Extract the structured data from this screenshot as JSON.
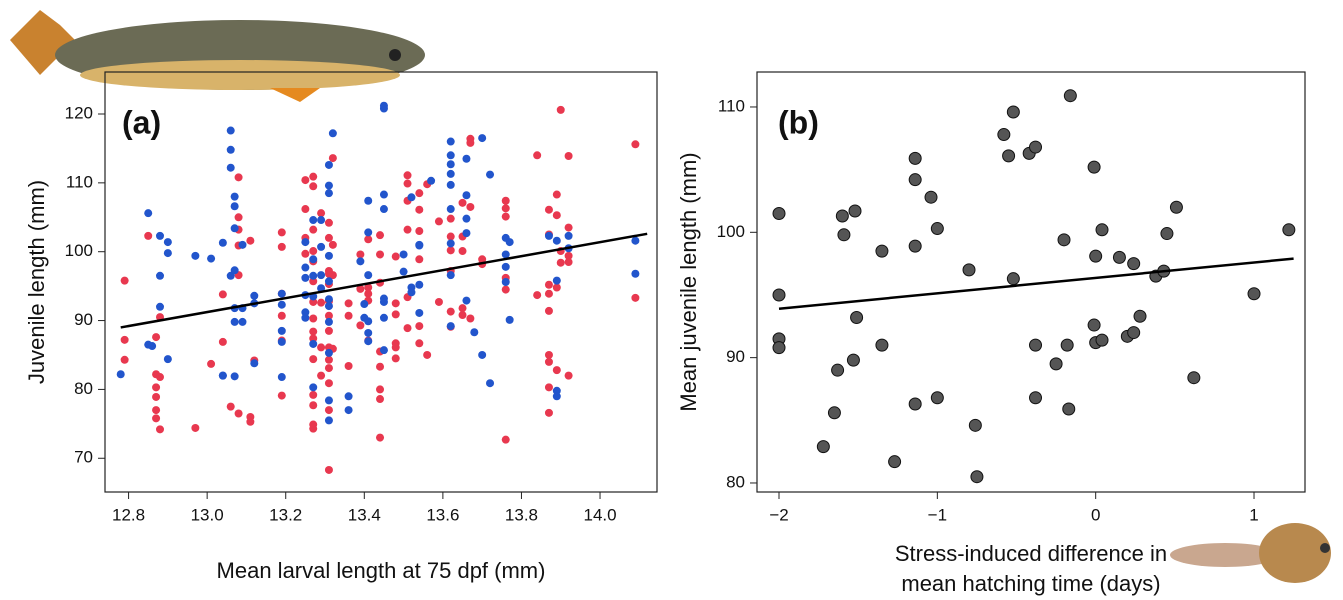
{
  "chart_data": [
    {
      "type": "scatter",
      "panel_label": "(a)",
      "xlabel": [
        "Mean larval length at 75 dpf (mm)"
      ],
      "ylabel": "Juvenile length (mm)",
      "xlim": [
        12.74,
        14.145
      ],
      "ylim": [
        65.1,
        126.1
      ],
      "xticks": [
        12.8,
        {
          "value": 13,
          "label": "13.0"
        },
        13.2,
        13.4,
        13.6,
        13.8,
        {
          "value": 14,
          "label": "14.0"
        }
      ],
      "yticks": [
        70,
        80,
        90,
        100,
        110,
        120
      ],
      "marker_size": 4,
      "series": [
        {
          "color": "#e8384f",
          "x": [
            12.79,
            12.79,
            12.79,
            12.85,
            12.87,
            12.87,
            12.87,
            12.87,
            12.87,
            12.87,
            12.88,
            12.88,
            12.88,
            12.97,
            13.01,
            13.04,
            13.04,
            13.06,
            13.08,
            13.08,
            13.08,
            13.08,
            13.08,
            13.08,
            13.11,
            13.11,
            13.11,
            13.12,
            13.19,
            13.19,
            13.19,
            13.19,
            13.19,
            13.19,
            13.25,
            13.25,
            13.25,
            13.25,
            13.27,
            13.27,
            13.27,
            13.27,
            13.27,
            13.27,
            13.27,
            13.27,
            13.27,
            13.27,
            13.27,
            13.27,
            13.27,
            13.27,
            13.27,
            13.29,
            13.29,
            13.29,
            13.29,
            13.31,
            13.31,
            13.31,
            13.31,
            13.31,
            13.31,
            13.31,
            13.31,
            13.31,
            13.31,
            13.31,
            13.31,
            13.31,
            13.31,
            13.32,
            13.32,
            13.32,
            13.32,
            13.36,
            13.36,
            13.36,
            13.39,
            13.39,
            13.39,
            13.41,
            13.41,
            13.41,
            13.41,
            13.41,
            13.44,
            13.44,
            13.44,
            13.44,
            13.44,
            13.44,
            13.44,
            13.44,
            13.48,
            13.48,
            13.48,
            13.48,
            13.48,
            13.48,
            13.51,
            13.51,
            13.51,
            13.51,
            13.51,
            13.51,
            13.54,
            13.54,
            13.54,
            13.54,
            13.54,
            13.54,
            13.56,
            13.56,
            13.59,
            13.59,
            13.62,
            13.62,
            13.62,
            13.62,
            13.62,
            13.62,
            13.65,
            13.65,
            13.65,
            13.65,
            13.65,
            13.67,
            13.67,
            13.67,
            13.67,
            13.7,
            13.7,
            13.76,
            13.76,
            13.76,
            13.76,
            13.76,
            13.76,
            13.84,
            13.84,
            13.87,
            13.87,
            13.87,
            13.87,
            13.87,
            13.87,
            13.87,
            13.87,
            13.87,
            13.89,
            13.89,
            13.89,
            13.89,
            13.9,
            13.9,
            13.9,
            13.92,
            13.92,
            13.92,
            13.92,
            13.92,
            14.09,
            14.09
          ],
          "values": [
            95.8,
            87.2,
            84.3,
            102.3,
            87.6,
            82.2,
            80.3,
            78.9,
            77,
            75.8,
            90.5,
            81.8,
            74.2,
            74.4,
            83.7,
            93.8,
            86.9,
            77.5,
            110.8,
            105,
            103.2,
            100.9,
            96.6,
            76.5,
            101.6,
            76,
            75.3,
            84.2,
            102.8,
            100.7,
            93.9,
            90.7,
            87.1,
            79.1,
            110.4,
            106.2,
            102,
            99.7,
            110.9,
            109.5,
            103.2,
            100.1,
            98.6,
            95.7,
            92.7,
            90.3,
            88.4,
            87.4,
            84.4,
            79.2,
            77.7,
            74.9,
            74.3,
            105.6,
            92.6,
            86.1,
            82,
            104.2,
            102,
            97.2,
            96.8,
            95.3,
            92.8,
            90.7,
            88.5,
            86.1,
            84.3,
            83.1,
            80.9,
            77,
            68.3,
            113.6,
            101,
            96.6,
            85.9,
            92.5,
            90.7,
            83.4,
            99.6,
            94.6,
            89.3,
            101.8,
            94.8,
            93.9,
            92.9,
            87.1,
            102.4,
            99.6,
            95.5,
            85.5,
            83.3,
            80,
            78.6,
            73,
            99.3,
            92.5,
            90.9,
            86.7,
            86.1,
            84.5,
            111.1,
            109.9,
            107.4,
            103.2,
            93.4,
            88.9,
            108.5,
            106.1,
            103,
            98.9,
            89.2,
            86.7,
            109.8,
            85,
            104.4,
            92.7,
            104.8,
            102.2,
            100.2,
            97.2,
            91.3,
            89.1,
            107.1,
            102.2,
            100.1,
            91.8,
            90.8,
            116.4,
            115.8,
            106.5,
            90.3,
            98.9,
            98.2,
            107.4,
            106.3,
            105.1,
            96.2,
            94.5,
            72.7,
            114,
            93.7,
            106.1,
            102.5,
            95.2,
            93.9,
            91.4,
            85,
            84,
            80.3,
            76.6,
            108.3,
            105.3,
            94.8,
            82.8,
            120.6,
            100.1,
            98.4,
            113.9,
            103.5,
            99.4,
            98.5,
            82,
            115.6,
            93.3
          ]
        },
        {
          "color": "#2255cc",
          "x": [
            12.78,
            12.85,
            12.85,
            12.86,
            12.88,
            12.88,
            12.88,
            12.9,
            12.9,
            12.9,
            12.97,
            13.01,
            13.04,
            13.04,
            13.04,
            13.06,
            13.06,
            13.06,
            13.06,
            13.07,
            13.07,
            13.07,
            13.07,
            13.07,
            13.07,
            13.07,
            13.09,
            13.09,
            13.09,
            13.12,
            13.12,
            13.12,
            13.19,
            13.19,
            13.19,
            13.19,
            13.19,
            13.25,
            13.25,
            13.25,
            13.25,
            13.25,
            13.25,
            13.27,
            13.27,
            13.27,
            13.27,
            13.27,
            13.27,
            13.29,
            13.29,
            13.29,
            13.29,
            13.31,
            13.31,
            13.31,
            13.31,
            13.31,
            13.31,
            13.31,
            13.31,
            13.31,
            13.31,
            13.31,
            13.32,
            13.36,
            13.36,
            13.39,
            13.4,
            13.4,
            13.41,
            13.41,
            13.41,
            13.41,
            13.41,
            13.41,
            13.45,
            13.45,
            13.45,
            13.45,
            13.45,
            13.45,
            13.45,
            13.45,
            13.5,
            13.5,
            13.52,
            13.52,
            13.52,
            13.54,
            13.54,
            13.54,
            13.54,
            13.57,
            13.62,
            13.62,
            13.62,
            13.62,
            13.62,
            13.62,
            13.62,
            13.62,
            13.62,
            13.66,
            13.66,
            13.66,
            13.66,
            13.66,
            13.68,
            13.7,
            13.7,
            13.72,
            13.72,
            13.76,
            13.76,
            13.76,
            13.76,
            13.77,
            13.77,
            13.87,
            13.89,
            13.89,
            13.89,
            13.89,
            13.92,
            13.92,
            14.09,
            14.09
          ],
          "values": [
            82.2,
            105.6,
            86.5,
            86.3,
            102.3,
            96.5,
            92,
            101.4,
            99.8,
            84.4,
            99.4,
            99,
            101.3,
            82,
            82,
            117.6,
            114.8,
            112.2,
            96.5,
            108,
            106.6,
            103.4,
            97.3,
            91.8,
            89.8,
            81.9,
            101,
            91.8,
            89.8,
            93.6,
            92.5,
            83.8,
            93.9,
            92.3,
            88.5,
            86.9,
            81.8,
            101.4,
            97.7,
            96.2,
            93.7,
            91.2,
            90.4,
            104.6,
            98.9,
            96.5,
            93.5,
            86.6,
            80.3,
            104.6,
            100.7,
            96.6,
            94.7,
            112.6,
            109.6,
            108.5,
            99.4,
            95.7,
            93.1,
            92.1,
            89.8,
            85.3,
            78.4,
            75.5,
            117.2,
            79,
            77,
            98.6,
            92.4,
            90.4,
            107.4,
            102.8,
            96.6,
            89.9,
            88.2,
            87,
            121.2,
            120.8,
            108.3,
            106.2,
            93.2,
            92.7,
            90.4,
            85.7,
            99.6,
            97.1,
            107.9,
            94.8,
            94.1,
            101,
            100.9,
            95.2,
            91.1,
            110.3,
            116,
            114,
            112.7,
            111.3,
            109.7,
            106.2,
            101.2,
            96.6,
            89.2,
            113.5,
            108.2,
            104.8,
            102.7,
            92.9,
            88.3,
            116.5,
            85,
            111.2,
            80.9,
            102,
            99.6,
            97.8,
            95.6,
            101.4,
            90.1,
            102.3,
            101.6,
            95.8,
            79.8,
            79,
            102.3,
            100.5,
            101.6,
            96.8
          ]
        }
      ],
      "trend_line": {
        "x": [
          12.78,
          14.12
        ],
        "y": [
          89,
          102.6
        ]
      }
    },
    {
      "type": "scatter",
      "panel_label": "(b)",
      "xlabel": [
        "Stress-induced difference in",
        "mean hatching time (days)"
      ],
      "ylabel": "Mean juvenile length (mm)",
      "xlim": [
        -2.139,
        1.322
      ],
      "ylim": [
        79.28,
        112.79
      ],
      "xticks": [
        {
          "value": -2,
          "label": "−2"
        },
        {
          "value": -1,
          "label": "−1"
        },
        0,
        1
      ],
      "yticks": [
        80,
        90,
        100,
        110
      ],
      "marker_size": 6,
      "series": [
        {
          "color": "#555555",
          "x": [
            -2,
            -2,
            -2,
            -2,
            -1.72,
            -1.65,
            -1.63,
            -1.6,
            -1.59,
            -1.52,
            -1.51,
            -1.53,
            -1.35,
            -1.35,
            -1.27,
            -1.14,
            -1.14,
            -1.14,
            -1.14,
            -1.04,
            -1,
            -1,
            -0.8,
            -0.76,
            -0.75,
            -0.52,
            -0.52,
            -0.58,
            -0.55,
            -0.42,
            -0.38,
            -0.38,
            -0.38,
            -0.25,
            -0.2,
            -0.18,
            -0.17,
            -0.16,
            -0.01,
            0,
            -0.01,
            0,
            0.04,
            0.04,
            0.15,
            0.2,
            0.24,
            0.24,
            0.28,
            0.38,
            0.43,
            0.45,
            0.51,
            0.62,
            1,
            1.22
          ],
          "values": [
            101.5,
            95,
            91.5,
            90.8,
            82.9,
            85.6,
            89,
            101.3,
            99.8,
            101.7,
            93.2,
            89.8,
            98.5,
            91,
            81.7,
            105.9,
            104.2,
            98.9,
            86.3,
            102.8,
            100.3,
            86.8,
            97,
            84.6,
            80.5,
            109.6,
            96.3,
            107.8,
            106.1,
            106.3,
            106.8,
            91,
            86.8,
            89.5,
            99.4,
            91,
            85.9,
            110.9,
            105.2,
            98.1,
            92.6,
            91.2,
            100.2,
            91.4,
            98,
            91.7,
            97.5,
            92,
            93.3,
            96.5,
            96.9,
            99.9,
            102,
            88.4,
            95.1,
            100.2
          ]
        }
      ],
      "trend_line": {
        "x": [
          -2,
          1.25
        ],
        "y": [
          93.9,
          97.9
        ]
      }
    }
  ]
}
